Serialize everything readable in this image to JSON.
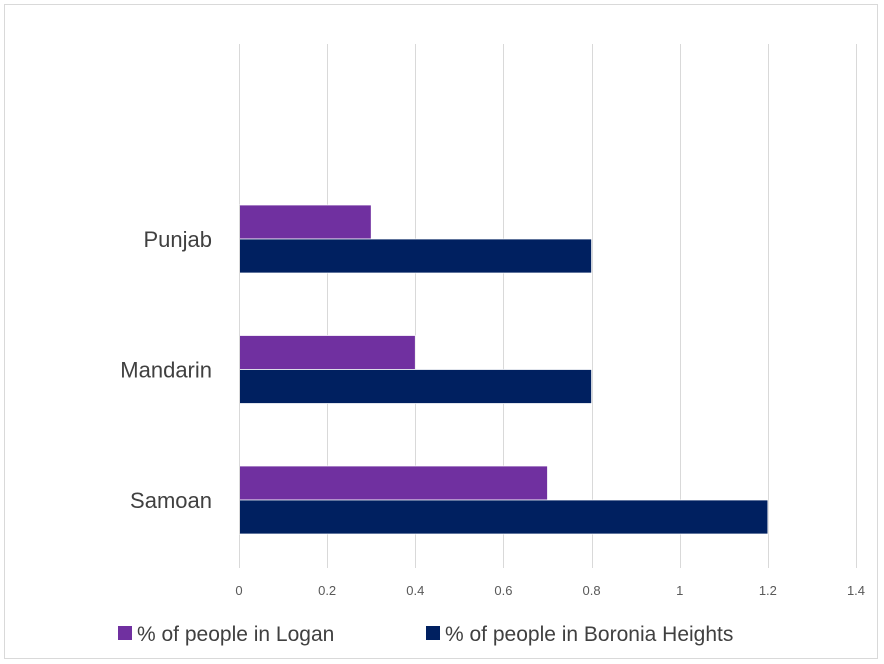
{
  "chart_data": {
    "type": "bar",
    "orientation": "horizontal",
    "categories": [
      "Punjab",
      "Mandarin",
      "Samoan"
    ],
    "series": [
      {
        "name": "% of people in Logan",
        "values": [
          0.3,
          0.4,
          0.7
        ],
        "color": "#7030a0"
      },
      {
        "name": "% of people in Boronia Heights",
        "values": [
          0.8,
          0.8,
          1.2
        ],
        "color": "#002060"
      }
    ],
    "xlim": [
      0,
      1.4
    ],
    "xticks": [
      0,
      0.2,
      0.4,
      0.6,
      0.8,
      1,
      1.2,
      1.4
    ],
    "xtick_labels": [
      "0",
      "0.2",
      "0.4",
      "0.6",
      "0.8",
      "1",
      "1.2",
      "1.4"
    ],
    "grid": "vertical",
    "legend_position": "bottom",
    "title": "",
    "xlabel": "",
    "ylabel": ""
  }
}
